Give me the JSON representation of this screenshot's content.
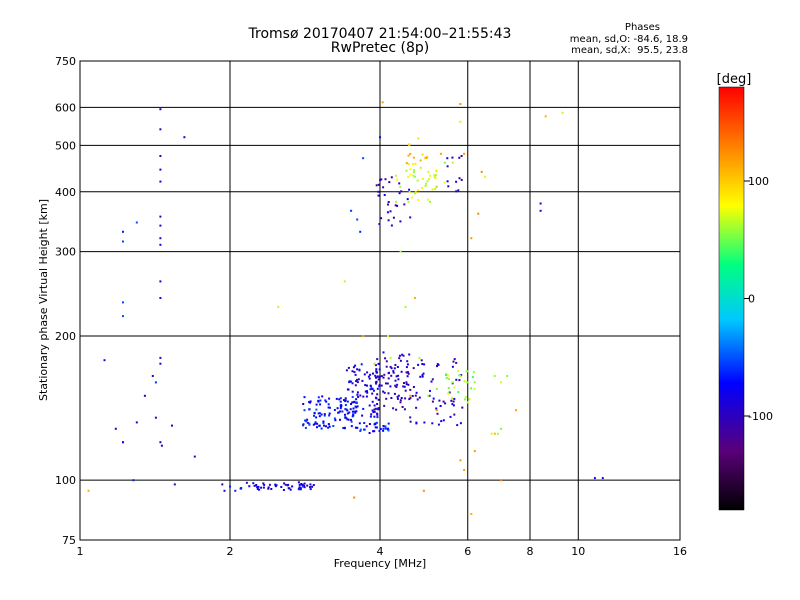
{
  "header": {
    "title": "Tromsø 20170407 21:54:00–21:55:43",
    "subtitle": "RwPretec (8p)",
    "stats_heading": "Phases",
    "stats_o": "mean, sd,O: -84.6, 18.9",
    "stats_x": "mean, sd,X:  95.5, 23.8"
  },
  "chart_data": {
    "type": "scatter",
    "title": "Tromsø 20170407 21:54:00–21:55:43",
    "subtitle": "RwPretec (8p)",
    "xlabel": "Frequency [MHz]",
    "ylabel": "Stationary phase Virtual Height [km]",
    "x_scale": "log",
    "y_scale": "log",
    "xlim": [
      1,
      16
    ],
    "ylim": [
      75,
      750
    ],
    "x_ticks": [
      1,
      2,
      4,
      6,
      8,
      10,
      16
    ],
    "x_tick_labels": [
      "1",
      "2",
      "4",
      "6",
      "8",
      "10",
      "16"
    ],
    "y_ticks": [
      75,
      100,
      200,
      300,
      400,
      500,
      600,
      750
    ],
    "y_tick_labels": [
      "75",
      "100",
      "200",
      "300",
      "400",
      "500",
      "600",
      "750"
    ],
    "grid": true,
    "colorbar": {
      "label": "[deg]",
      "range": [
        -180,
        180
      ],
      "ticks": [
        -100,
        0,
        100
      ],
      "tick_labels": [
        "-100",
        "0",
        "100"
      ],
      "colors": [
        "#000000",
        "#5a007a",
        "#0000ff",
        "#00c8ff",
        "#00ff80",
        "#ffff00",
        "#ff8000",
        "#ff0000"
      ]
    },
    "series": [
      {
        "phase": -95,
        "points": [
          [
            1.45,
            595
          ],
          [
            1.45,
            540
          ],
          [
            1.45,
            475
          ],
          [
            1.45,
            445
          ],
          [
            1.45,
            420
          ],
          [
            1.45,
            355
          ],
          [
            1.45,
            340
          ],
          [
            1.45,
            320
          ],
          [
            1.45,
            310
          ],
          [
            1.45,
            260
          ],
          [
            1.45,
            240
          ],
          [
            1.45,
            180
          ],
          [
            1.45,
            175
          ],
          [
            1.45,
            120
          ],
          [
            1.46,
            118
          ],
          [
            1.42,
            135
          ],
          [
            1.4,
            165
          ],
          [
            1.53,
            130
          ],
          [
            1.62,
            520
          ],
          [
            1.7,
            112
          ],
          [
            1.55,
            98
          ],
          [
            1.12,
            178
          ],
          [
            1.18,
            128
          ],
          [
            1.22,
            120
          ],
          [
            1.3,
            132
          ],
          [
            1.35,
            150
          ],
          [
            1.93,
            98
          ],
          [
            1.95,
            95
          ],
          [
            10.8,
            101
          ],
          [
            11.2,
            101
          ],
          [
            8.4,
            378
          ],
          [
            8.4,
            365
          ]
        ]
      },
      {
        "phase": -60,
        "points": [
          [
            1.3,
            345
          ],
          [
            1.22,
            330
          ],
          [
            1.22,
            315
          ],
          [
            1.22,
            235
          ],
          [
            1.22,
            220
          ],
          [
            1.22,
            120
          ],
          [
            1.28,
            100
          ],
          [
            1.42,
            160
          ],
          [
            2.0,
            97
          ],
          [
            2.05,
            95
          ],
          [
            2.1,
            96
          ],
          [
            2.8,
            97
          ],
          [
            2.75,
            96
          ],
          [
            2.9,
            98
          ],
          [
            3.6,
            350
          ],
          [
            3.65,
            330
          ],
          [
            3.7,
            470
          ],
          [
            3.5,
            365
          ],
          [
            4.0,
            520
          ]
        ]
      },
      {
        "phase": 60,
        "points": [
          [
            2.5,
            230
          ],
          [
            3.4,
            260
          ],
          [
            3.7,
            200
          ],
          [
            4.15,
            200
          ],
          [
            4.5,
            230
          ],
          [
            4.7,
            430
          ],
          [
            5.0,
            440
          ],
          [
            5.2,
            410
          ],
          [
            5.4,
            460
          ],
          [
            5.6,
            460
          ],
          [
            5.8,
            560
          ],
          [
            4.8,
            180
          ],
          [
            5.0,
            150
          ],
          [
            5.2,
            155
          ],
          [
            5.6,
            160
          ],
          [
            5.8,
            165
          ],
          [
            6.0,
            160
          ],
          [
            6.8,
            165
          ],
          [
            7.0,
            160
          ],
          [
            7.2,
            165
          ],
          [
            6.7,
            125
          ],
          [
            6.9,
            125
          ],
          [
            7.0,
            128
          ],
          [
            9.3,
            585
          ],
          [
            6.5,
            430
          ],
          [
            4.4,
            300
          ],
          [
            4.2,
            180
          ],
          [
            3.9,
            175
          ]
        ]
      },
      {
        "phase": 120,
        "points": [
          [
            1.04,
            95
          ],
          [
            3.55,
            92
          ],
          [
            4.05,
            615
          ],
          [
            3.7,
            200
          ],
          [
            4.7,
            240
          ],
          [
            5.3,
            480
          ],
          [
            5.8,
            610
          ],
          [
            5.9,
            480
          ],
          [
            6.1,
            320
          ],
          [
            6.3,
            360
          ],
          [
            6.4,
            440
          ],
          [
            6.8,
            125
          ],
          [
            7.0,
            100
          ],
          [
            4.9,
            95
          ],
          [
            6.1,
            85
          ],
          [
            7.5,
            140
          ],
          [
            8.6,
            575
          ],
          [
            4.6,
            150
          ],
          [
            5.2,
            140
          ],
          [
            5.8,
            110
          ],
          [
            5.9,
            105
          ],
          [
            6.2,
            115
          ]
        ]
      }
    ],
    "clusters": [
      {
        "phase": -90,
        "x_range": [
          2.1,
          2.95
        ],
        "y_range": [
          95,
          99
        ],
        "count": 50
      },
      {
        "phase": -70,
        "x_range": [
          2.8,
          3.6
        ],
        "y_range": [
          128,
          150
        ],
        "count": 110
      },
      {
        "phase": -85,
        "x_range": [
          3.4,
          4.0
        ],
        "y_range": [
          135,
          175
        ],
        "count": 90
      },
      {
        "phase": -100,
        "x_range": [
          3.9,
          4.6
        ],
        "y_range": [
          140,
          185
        ],
        "count": 80
      },
      {
        "phase": -65,
        "x_range": [
          3.6,
          4.2
        ],
        "y_range": [
          125,
          132
        ],
        "count": 30
      },
      {
        "phase": -95,
        "x_range": [
          4.5,
          5.9
        ],
        "y_range": [
          130,
          180
        ],
        "count": 70
      },
      {
        "phase": -100,
        "x_range": [
          3.9,
          4.6
        ],
        "y_range": [
          340,
          430
        ],
        "count": 30
      },
      {
        "phase": 70,
        "x_range": [
          4.3,
          5.4
        ],
        "y_range": [
          380,
          450
        ],
        "count": 40
      },
      {
        "phase": 100,
        "x_range": [
          4.5,
          5.0
        ],
        "y_range": [
          450,
          520
        ],
        "count": 15
      },
      {
        "phase": -90,
        "x_range": [
          5.4,
          5.9
        ],
        "y_range": [
          400,
          480
        ],
        "count": 12
      },
      {
        "phase": 60,
        "x_range": [
          5.4,
          6.2
        ],
        "y_range": [
          145,
          170
        ],
        "count": 25
      }
    ]
  }
}
